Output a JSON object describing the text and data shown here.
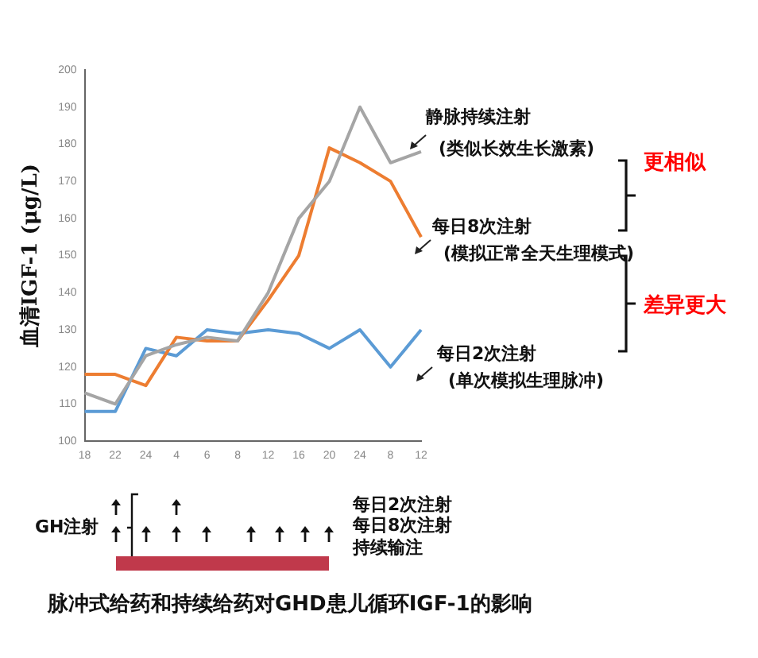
{
  "chart_data": {
    "type": "line",
    "title": "脉冲式给药和持续给药对GHD患儿循环IGF-1的影响",
    "ylabel": "血清IGF-1 (μg/L)",
    "categories": [
      "18",
      "22",
      "24",
      "4",
      "6",
      "8",
      "12",
      "16",
      "20",
      "24",
      "8",
      "12"
    ],
    "series": [
      {
        "color": "#a5a5a5",
        "values": [
          113,
          110,
          123,
          126,
          128,
          127,
          140,
          160,
          170,
          190,
          175,
          178
        ]
      },
      {
        "color": "#ed7d31",
        "values": [
          118,
          118,
          115,
          128,
          127,
          127,
          138,
          150,
          179,
          175,
          170,
          155
        ]
      },
      {
        "color": "#5b9bd5",
        "values": [
          108,
          108,
          125,
          123,
          130,
          129,
          130,
          129,
          125,
          130,
          120,
          130
        ]
      }
    ],
    "ylim": [
      100,
      200
    ],
    "yticks": [
      100,
      110,
      120,
      130,
      140,
      150,
      160,
      170,
      180,
      190,
      200
    ],
    "grid": false,
    "legend": false,
    "marker": "none",
    "line_style": "solid",
    "annotations": [
      "静脉持续注射",
      "(类似长效生长激素)",
      "每日8次注射",
      "(模拟正常全天生理模式)",
      "每日2次注射",
      "(单次模拟生理脉冲)",
      "更相似",
      "差异更大",
      "GH注射",
      "每日2次注射",
      "每日8次注射",
      "持续输注"
    ]
  }
}
